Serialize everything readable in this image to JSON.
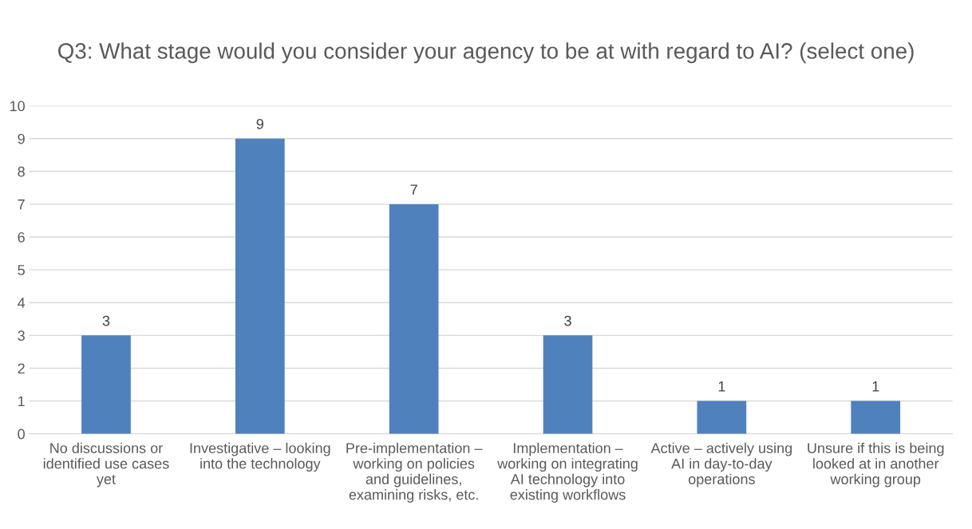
{
  "chart_data": {
    "type": "bar",
    "title": "Q3: What stage would you consider your agency to be at with regard to AI? (select one)",
    "categories": [
      "No discussions or\nidentified use cases\nyet",
      "Investigative – looking\ninto the technology",
      "Pre-implementation –\nworking on policies\nand guidelines,\nexamining risks, etc.",
      "Implementation –\nworking on integrating\nAI technology into\nexisting workflows",
      "Active – actively using\nAI in day-to-day\noperations",
      "Unsure if this is being\nlooked at in another\nworking group"
    ],
    "values": [
      3,
      9,
      7,
      3,
      1,
      1
    ],
    "color": "#4f81bd",
    "ylim": [
      0,
      10
    ],
    "yticks": [
      0,
      1,
      2,
      3,
      4,
      5,
      6,
      7,
      8,
      9,
      10
    ],
    "grid": "y",
    "data_labels": true
  }
}
